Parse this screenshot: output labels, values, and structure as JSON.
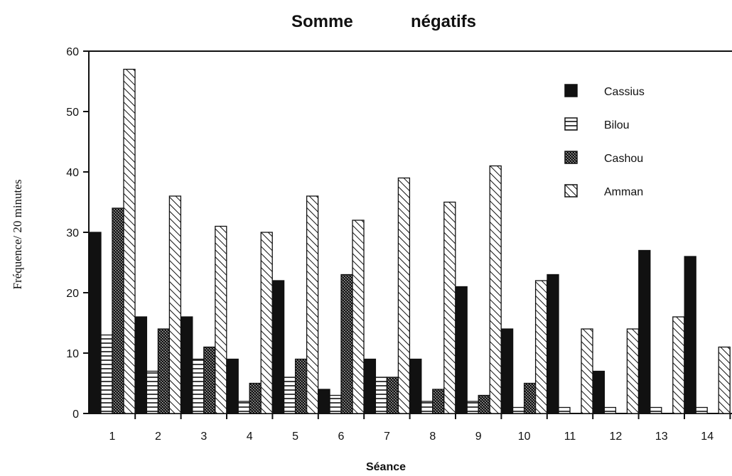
{
  "chart_data": {
    "type": "bar",
    "title_left": "Somme",
    "title_right": "négatifs",
    "xlabel": "Séance",
    "ylabel": "Fréquence/ 20 minutes",
    "ylim": [
      0,
      60
    ],
    "yticks": [
      0,
      10,
      20,
      30,
      40,
      50,
      60
    ],
    "grid": false,
    "legend_position": "top-right",
    "categories": [
      "1",
      "2",
      "3",
      "4",
      "5",
      "6",
      "7",
      "8",
      "9",
      "10",
      "11",
      "12",
      "13",
      "14"
    ],
    "series": [
      {
        "name": "Cassius",
        "pattern": "solid",
        "values": [
          30,
          16,
          16,
          9,
          22,
          4,
          9,
          9,
          21,
          14,
          23,
          7,
          27,
          26
        ]
      },
      {
        "name": "Bilou",
        "pattern": "horizontal-lines",
        "values": [
          13,
          7,
          9,
          2,
          6,
          3,
          6,
          2,
          2,
          1,
          1,
          1,
          1,
          1
        ]
      },
      {
        "name": "Cashou",
        "pattern": "dots",
        "values": [
          34,
          14,
          11,
          5,
          9,
          23,
          6,
          4,
          3,
          5,
          0,
          0,
          0,
          0
        ]
      },
      {
        "name": "Amman",
        "pattern": "diagonal-hatch",
        "values": [
          57,
          36,
          31,
          30,
          36,
          32,
          39,
          35,
          41,
          22,
          14,
          14,
          16,
          11
        ]
      }
    ]
  }
}
